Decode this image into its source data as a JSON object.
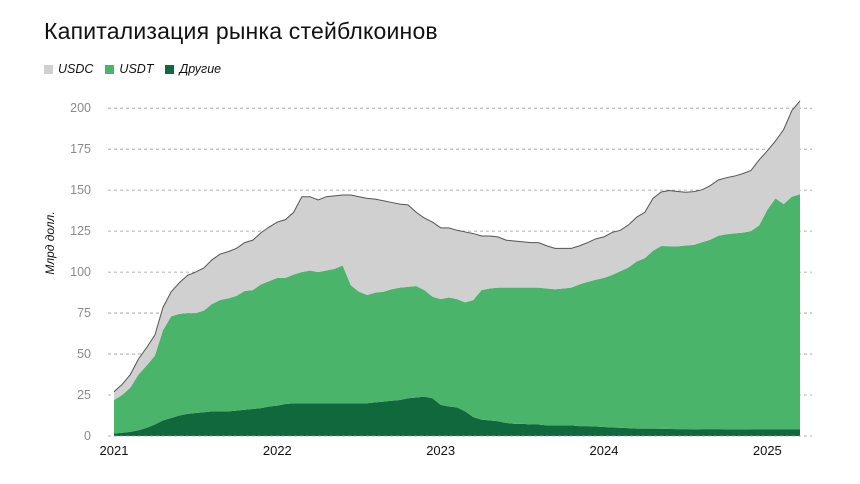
{
  "title": "Капитализация рынка стейблкоинов",
  "chart_data": {
    "type": "area",
    "stacked": true,
    "ylabel": "Млрд долл.",
    "xlabel": "",
    "ylim": [
      0,
      205
    ],
    "y_ticks": [
      0,
      25,
      50,
      75,
      100,
      125,
      150,
      175,
      200
    ],
    "x_ticks": [
      "2021",
      "2022",
      "2023",
      "2024",
      "2025"
    ],
    "grid": "horizontal-dashed",
    "legend": "top-left",
    "x": [
      2021.0,
      2021.05,
      2021.1,
      2021.15,
      2021.2,
      2021.25,
      2021.3,
      2021.35,
      2021.4,
      2021.45,
      2021.5,
      2021.55,
      2021.6,
      2021.65,
      2021.7,
      2021.75,
      2021.8,
      2021.85,
      2021.9,
      2021.95,
      2022.0,
      2022.05,
      2022.1,
      2022.15,
      2022.2,
      2022.25,
      2022.3,
      2022.35,
      2022.4,
      2022.45,
      2022.5,
      2022.55,
      2022.6,
      2022.65,
      2022.7,
      2022.75,
      2022.8,
      2022.85,
      2022.9,
      2022.95,
      2023.0,
      2023.05,
      2023.1,
      2023.15,
      2023.2,
      2023.25,
      2023.3,
      2023.35,
      2023.4,
      2023.45,
      2023.5,
      2023.55,
      2023.6,
      2023.65,
      2023.7,
      2023.75,
      2023.8,
      2023.85,
      2023.9,
      2023.95,
      2024.0,
      2024.05,
      2024.1,
      2024.15,
      2024.2,
      2024.25,
      2024.3,
      2024.35,
      2024.4,
      2024.45,
      2024.5,
      2024.55,
      2024.6,
      2024.65,
      2024.7,
      2024.75,
      2024.8,
      2024.85,
      2024.9,
      2024.95,
      2025.0,
      2025.05,
      2025.1,
      2025.15,
      2025.2
    ],
    "series": [
      {
        "name": "Другие",
        "color": "#10693d",
        "values": [
          1.5,
          2,
          2.5,
          3.5,
          5,
          7,
          9.5,
          11,
          12.5,
          13.5,
          14,
          14.5,
          15,
          15,
          15,
          15.5,
          16,
          16.5,
          17,
          18,
          18.5,
          19.5,
          20,
          20,
          20,
          20,
          20,
          20,
          20,
          20,
          20,
          20,
          20.5,
          21,
          21.5,
          22,
          23,
          23.5,
          24,
          23,
          19,
          18,
          17.5,
          15,
          11.5,
          10,
          9.5,
          9,
          8,
          7.5,
          7.5,
          7,
          7,
          6.5,
          6.5,
          6.5,
          6.5,
          6,
          6,
          5.8,
          5.5,
          5.2,
          5,
          4.8,
          4.5,
          4.5,
          4.5,
          4.4,
          4.3,
          4.2,
          4.2,
          4.1,
          4.2,
          4.2,
          4.2,
          4.1,
          4.1,
          4.1,
          4,
          4,
          4,
          4,
          4,
          4,
          4
        ]
      },
      {
        "name": "USDT",
        "color": "#4ab46a",
        "values": [
          20.5,
          23,
          27,
          34,
          38,
          42,
          55,
          62,
          62,
          61.5,
          61,
          62,
          65.5,
          68,
          69,
          70,
          72.5,
          72.5,
          75.5,
          76.5,
          78,
          77,
          78.5,
          80,
          81,
          80,
          81,
          82,
          84,
          72,
          68,
          66,
          67,
          67,
          68,
          68.5,
          68,
          68,
          65,
          62,
          64.5,
          66.5,
          66,
          66.5,
          71.5,
          79,
          80.5,
          81.5,
          82.5,
          83,
          83,
          83.5,
          83.5,
          83.5,
          83,
          83.5,
          84,
          86.5,
          88,
          89.5,
          91,
          93,
          95.5,
          98,
          102,
          104,
          108.5,
          111.5,
          111.5,
          111.5,
          112,
          112.5,
          114,
          115.5,
          118,
          119,
          119.5,
          120,
          121,
          124.5,
          134,
          141,
          137.5,
          142,
          143.5
        ]
      },
      {
        "name": "USDC",
        "color": "#d0d0d0",
        "values": [
          5,
          6.5,
          8,
          9.5,
          11,
          12.5,
          14,
          15,
          19,
          23,
          25,
          26,
          27,
          28,
          28.5,
          29,
          29.5,
          30.5,
          31.5,
          33,
          34,
          35.5,
          38,
          46,
          45,
          44,
          45,
          44.5,
          43,
          55,
          58,
          59,
          57,
          55.5,
          53,
          51,
          50,
          45,
          44,
          45.5,
          43.5,
          42.5,
          42,
          43,
          40.5,
          33,
          32,
          31,
          29,
          28.5,
          28,
          27.5,
          27.5,
          26,
          25,
          24.5,
          24,
          23.5,
          24,
          25,
          25,
          26,
          25,
          26,
          27,
          28,
          32,
          33,
          34,
          33.5,
          32.5,
          32.5,
          32,
          33,
          34,
          34.5,
          35,
          36,
          37,
          40,
          36,
          35,
          45.5,
          52.5,
          57
        ]
      }
    ]
  }
}
